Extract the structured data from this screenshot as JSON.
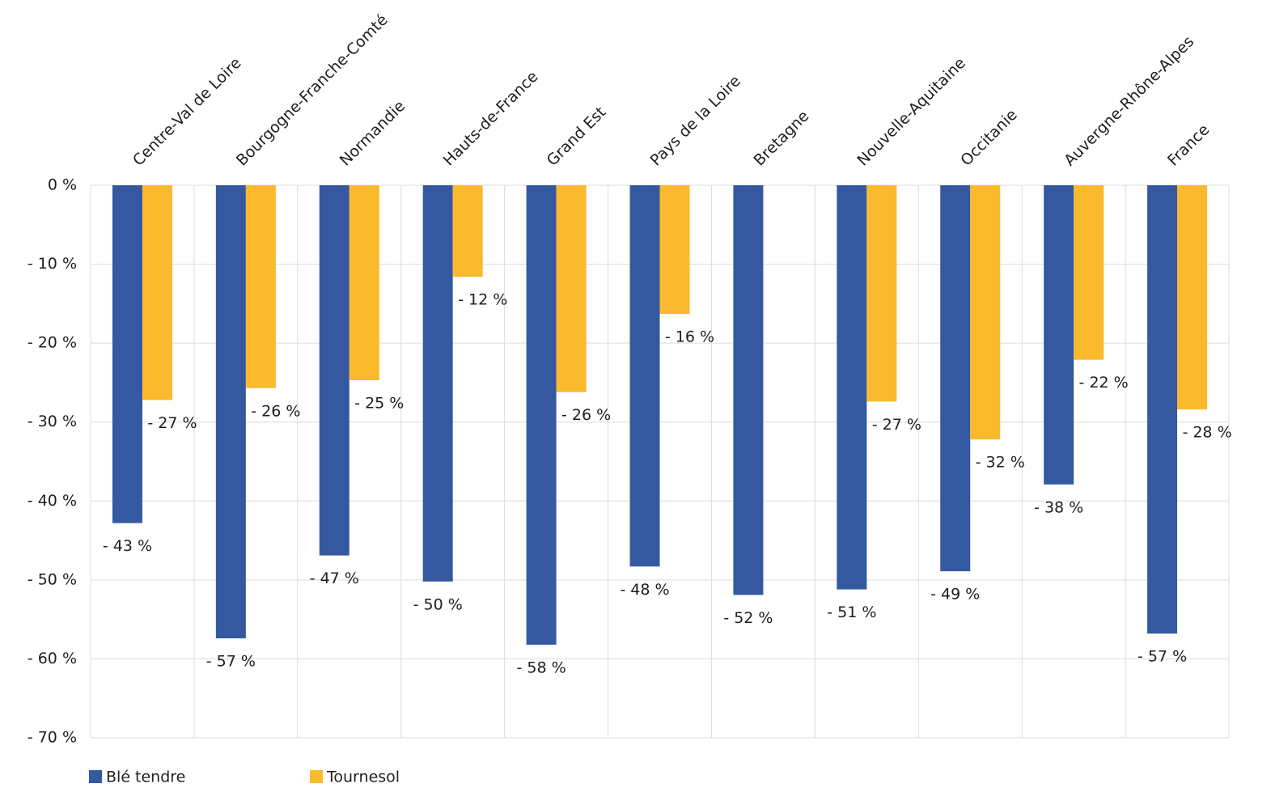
{
  "chart_data": {
    "type": "bar",
    "categories": [
      "Centre-Val de Loire",
      "Bourgogne-Franche-Comté",
      "Normandie",
      "Hauts-de-France",
      "Grand Est",
      "Pays de la Loire",
      "Bretagne",
      "Nouvelle-Aquitaine",
      "Occitanie",
      "Auvergne-Rhône-Alpes",
      "France"
    ],
    "series": [
      {
        "name": "Blé tendre",
        "color": "#3559a1",
        "values": [
          -42.8,
          -57.4,
          -46.9,
          -50.2,
          -58.2,
          -48.3,
          -51.9,
          -51.2,
          -48.9,
          -37.9,
          -56.8
        ],
        "value_labels": [
          "- 43 %",
          "- 57 %",
          "- 47 %",
          "- 50 %",
          "- 58 %",
          "- 48 %",
          "- 52 %",
          "- 51 %",
          "- 49 %",
          "- 38 %",
          "- 57 %"
        ]
      },
      {
        "name": "Tournesol",
        "color": "#fbb92e",
        "values": [
          -27.2,
          -25.7,
          -24.7,
          -11.6,
          -26.2,
          -16.3,
          null,
          -27.4,
          -32.2,
          -22.1,
          -28.4
        ],
        "value_labels": [
          "- 27 %",
          "- 26 %",
          "- 25 %",
          "- 12 %",
          "- 26 %",
          "- 16 %",
          null,
          "- 27 %",
          "- 32 %",
          "- 22 %",
          "- 28 %"
        ]
      }
    ],
    "ylim": [
      -70,
      0
    ],
    "yticks": [
      {
        "value": 0,
        "label": "0 %"
      },
      {
        "value": -10,
        "label": "- 10 %"
      },
      {
        "value": -20,
        "label": "- 20 %"
      },
      {
        "value": -30,
        "label": "- 30 %"
      },
      {
        "value": -40,
        "label": "- 40 %"
      },
      {
        "value": -50,
        "label": "- 50 %"
      },
      {
        "value": -60,
        "label": "- 60 %"
      },
      {
        "value": -70,
        "label": "- 70 %"
      }
    ],
    "grid": true,
    "legend": "bottom-left"
  }
}
